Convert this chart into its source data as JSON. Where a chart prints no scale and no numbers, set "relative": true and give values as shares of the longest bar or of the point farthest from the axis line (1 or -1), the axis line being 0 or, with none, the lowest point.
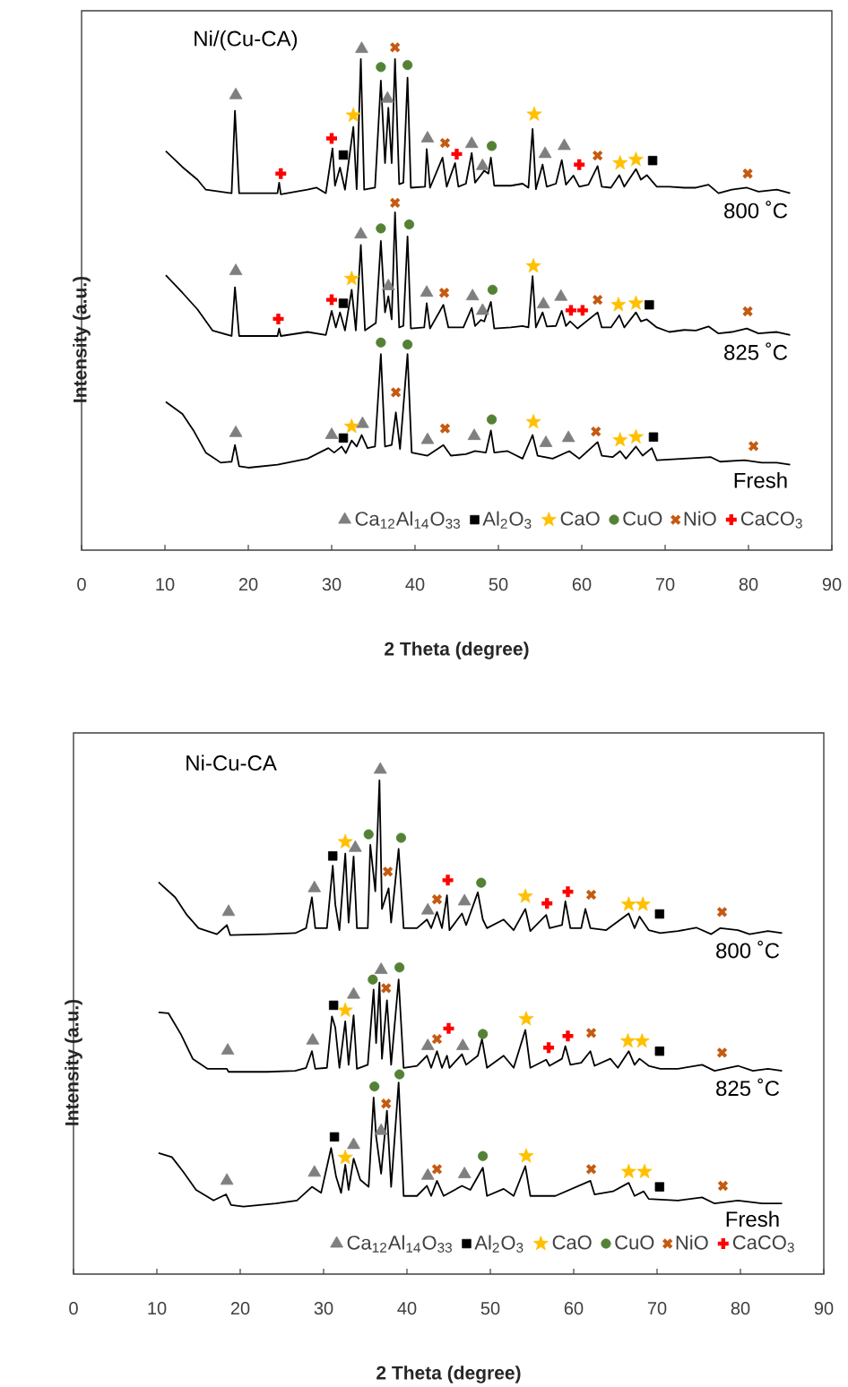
{
  "chart_data": [
    {
      "type": "line",
      "title": "Ni/(Cu-CA)",
      "xlabel": "2 Theta (degree)",
      "ylabel": "Intensity (a.u.)",
      "xlim": [
        0,
        90
      ],
      "xticks": [
        0,
        10,
        20,
        30,
        40,
        50,
        60,
        70,
        80,
        90
      ],
      "relative": true,
      "legend": "bottom right",
      "series": [
        {
          "name": "800 ˚C",
          "color": "#000000",
          "x": [
            10.1,
            12.1,
            13.9,
            14.9,
            18.0,
            18.4,
            18.9,
            23.5,
            23.7,
            23.9,
            27.1,
            28.2,
            29.3,
            30.1,
            30.4,
            31.0,
            31.6,
            32.6,
            33.0,
            33.5,
            33.9,
            35.2,
            35.9,
            36.4,
            36.8,
            37.2,
            37.6,
            38.1,
            38.6,
            39.1,
            39.5,
            41.2,
            41.4,
            41.8,
            43.3,
            43.8,
            44.8,
            45.2,
            46.1,
            46.8,
            47.2,
            47.9,
            48.3,
            48.8,
            49.1,
            49.5,
            51.5,
            52.9,
            53.6,
            54.1,
            54.5,
            55.3,
            55.8,
            56.9,
            57.6,
            58.1,
            59.0,
            59.7,
            60.8,
            61.9,
            62.4,
            63.5,
            64.5,
            65.1,
            66.5,
            67.1,
            67.8,
            69.0,
            70.5,
            72.3,
            73.7,
            75.2,
            76.4,
            78.0,
            79.8,
            81.2,
            83.4,
            85.0
          ],
          "values": [
            0.794,
            0.762,
            0.737,
            0.717,
            0.71,
            0.874,
            0.71,
            0.71,
            0.731,
            0.708,
            0.717,
            0.721,
            0.71,
            0.799,
            0.725,
            0.761,
            0.717,
            0.842,
            0.718,
            0.977,
            0.717,
            0.721,
            0.934,
            0.77,
            0.88,
            0.77,
            0.977,
            0.728,
            0.731,
            0.94,
            0.721,
            0.723,
            0.798,
            0.721,
            0.781,
            0.723,
            0.77,
            0.723,
            0.729,
            0.79,
            0.731,
            0.746,
            0.755,
            0.749,
            0.781,
            0.725,
            0.725,
            0.729,
            0.721,
            0.838,
            0.718,
            0.767,
            0.723,
            0.729,
            0.776,
            0.727,
            0.745,
            0.723,
            0.727,
            0.764,
            0.723,
            0.721,
            0.746,
            0.723,
            0.758,
            0.737,
            0.746,
            0.723,
            0.723,
            0.721,
            0.721,
            0.727,
            0.71,
            0.717,
            0.721,
            0.713,
            0.717,
            0.71
          ]
        },
        {
          "name": "825 ˚C",
          "color": "#000000",
          "x": [
            10.1,
            12.1,
            13.9,
            15.7,
            18.0,
            18.4,
            18.9,
            23.5,
            23.7,
            23.9,
            27.1,
            29.3,
            30.0,
            30.5,
            31.0,
            31.6,
            32.4,
            32.9,
            33.5,
            34.0,
            35.3,
            35.9,
            36.4,
            36.8,
            37.2,
            37.6,
            38.1,
            38.6,
            39.1,
            39.5,
            41.1,
            41.4,
            41.8,
            43.4,
            44.0,
            45.8,
            46.8,
            47.2,
            47.9,
            48.3,
            49.1,
            49.5,
            51.5,
            52.9,
            53.6,
            54.1,
            54.5,
            55.3,
            55.8,
            56.9,
            57.6,
            58.1,
            58.6,
            59.5,
            61.9,
            62.4,
            63.5,
            64.5,
            65.1,
            66.5,
            67.1,
            67.8,
            69.0,
            70.5,
            72.3,
            73.7,
            75.2,
            76.4,
            78.0,
            79.8,
            81.2,
            83.4,
            85.0
          ],
          "values": [
            0.547,
            0.512,
            0.479,
            0.437,
            0.426,
            0.523,
            0.426,
            0.426,
            0.441,
            0.426,
            0.434,
            0.428,
            0.476,
            0.443,
            0.473,
            0.437,
            0.518,
            0.437,
            0.607,
            0.437,
            0.452,
            0.615,
            0.473,
            0.505,
            0.459,
            0.672,
            0.443,
            0.446,
            0.624,
            0.441,
            0.443,
            0.491,
            0.441,
            0.488,
            0.443,
            0.443,
            0.482,
            0.446,
            0.458,
            0.455,
            0.494,
            0.441,
            0.443,
            0.446,
            0.443,
            0.545,
            0.443,
            0.473,
            0.445,
            0.446,
            0.476,
            0.446,
            0.455,
            0.441,
            0.473,
            0.443,
            0.443,
            0.467,
            0.443,
            0.473,
            0.455,
            0.459,
            0.443,
            0.434,
            0.438,
            0.437,
            0.445,
            0.431,
            0.434,
            0.441,
            0.431,
            0.434,
            0.428
          ]
        },
        {
          "name": "Fresh",
          "color": "#000000",
          "x": [
            10.1,
            12.1,
            13.5,
            14.9,
            16.7,
            18.0,
            18.4,
            18.9,
            20.0,
            23.5,
            27.1,
            29.6,
            30.3,
            31.2,
            31.7,
            32.4,
            33.0,
            33.6,
            34.3,
            35.2,
            35.9,
            36.4,
            37.2,
            37.7,
            38.2,
            39.1,
            39.6,
            41.5,
            43.4,
            44.3,
            46.1,
            47.2,
            48.5,
            49.1,
            49.5,
            51.1,
            52.9,
            54.1,
            54.7,
            56.5,
            58.5,
            59.7,
            61.9,
            62.4,
            63.7,
            64.6,
            65.3,
            66.5,
            67.3,
            68.4,
            69.0,
            72.3,
            75.5,
            76.6,
            79.5,
            81.6,
            83.4,
            85.0
          ],
          "values": [
            0.295,
            0.271,
            0.236,
            0.194,
            0.174,
            0.176,
            0.209,
            0.167,
            0.164,
            0.17,
            0.182,
            0.203,
            0.194,
            0.206,
            0.193,
            0.218,
            0.206,
            0.229,
            0.203,
            0.206,
            0.39,
            0.206,
            0.209,
            0.274,
            0.201,
            0.39,
            0.194,
            0.188,
            0.209,
            0.188,
            0.191,
            0.197,
            0.194,
            0.238,
            0.194,
            0.197,
            0.182,
            0.229,
            0.188,
            0.182,
            0.197,
            0.182,
            0.215,
            0.188,
            0.185,
            0.197,
            0.182,
            0.206,
            0.188,
            0.203,
            0.179,
            0.182,
            0.185,
            0.176,
            0.179,
            0.174,
            0.174,
            0.17
          ]
        },
        {
          "name": "Ca$_{12}$Al$_{14}$O$_{33}$",
          "type": "scatter",
          "marker": "triangle",
          "color": "#7f7f7f",
          "x": [
            18.5,
            33.6,
            36.7,
            41.5,
            46.8,
            48.1,
            55.6,
            57.9,
            18.5,
            33.5,
            36.8,
            41.4,
            46.9,
            48.1,
            55.4,
            57.5,
            18.5,
            30.0,
            33.7,
            41.5,
            47.1,
            55.7,
            58.4
          ],
          "values": [
            0.905,
            0.997,
            0.898,
            0.819,
            0.808,
            0.764,
            0.788,
            0.804,
            0.555,
            0.628,
            0.525,
            0.512,
            0.505,
            0.476,
            0.489,
            0.504,
            0.233,
            0.229,
            0.251,
            0.219,
            0.227,
            0.213,
            0.223
          ]
        },
        {
          "name": "Al$_{2}$O$_{3}$",
          "type": "scatter",
          "marker": "square",
          "color": "#000000",
          "x": [
            31.4,
            68.5,
            31.4,
            68.1,
            31.4,
            68.6
          ],
          "values": [
            0.786,
            0.775,
            0.491,
            0.488,
            0.223,
            0.225
          ]
        },
        {
          "name": "CaO",
          "type": "scatter",
          "marker": "star",
          "color": "#ffc000",
          "x": [
            32.6,
            54.3,
            64.6,
            66.5,
            32.4,
            54.2,
            64.4,
            66.5,
            32.4,
            54.2,
            64.6,
            66.5
          ],
          "values": [
            0.865,
            0.867,
            0.77,
            0.777,
            0.54,
            0.565,
            0.488,
            0.491,
            0.246,
            0.255,
            0.219,
            0.225
          ]
        },
        {
          "name": "CuO",
          "type": "scatter",
          "marker": "circle",
          "color": "#548235",
          "x": [
            35.9,
            39.1,
            49.2,
            35.9,
            39.3,
            49.3,
            35.9,
            39.1,
            49.2
          ],
          "values": [
            0.961,
            0.965,
            0.804,
            0.64,
            0.648,
            0.518,
            0.413,
            0.409,
            0.26
          ]
        },
        {
          "name": "NiO",
          "type": "scatter",
          "marker": "cross",
          "color": "#c55a11",
          "x": [
            37.6,
            43.6,
            61.9,
            79.9,
            37.6,
            43.5,
            61.9,
            79.9,
            37.7,
            43.6,
            61.7,
            80.6
          ],
          "values": [
            1.0,
            0.81,
            0.785,
            0.749,
            0.691,
            0.512,
            0.498,
            0.475,
            0.314,
            0.242,
            0.236,
            0.207
          ]
        },
        {
          "name": "CaCO$_{3}$",
          "type": "scatter",
          "marker": "plus",
          "color": "#ff0000",
          "x": [
            23.9,
            30.0,
            45.0,
            59.7,
            23.6,
            30.0,
            58.7,
            60.1
          ],
          "values": [
            0.749,
            0.819,
            0.788,
            0.767,
            0.46,
            0.498,
            0.477,
            0.477
          ]
        }
      ]
    },
    {
      "type": "line",
      "title": "Ni-Cu-CA",
      "xlabel": "2 Theta (degree)",
      "ylabel": "Intensity (a.u.)",
      "xlim": [
        0,
        90
      ],
      "xticks": [
        0,
        10,
        20,
        30,
        40,
        50,
        60,
        70,
        80,
        90
      ],
      "relative": true,
      "legend": "bottom right",
      "series": [
        {
          "name": "800 ˚C",
          "color": "#000000",
          "x": [
            10.2,
            12.2,
            13.6,
            15.0,
            17.2,
            18.4,
            18.8,
            23.2,
            26.6,
            27.9,
            28.6,
            29.0,
            30.4,
            31.1,
            31.4,
            31.9,
            32.6,
            33.0,
            33.6,
            34.0,
            35.3,
            35.6,
            36.2,
            36.7,
            37.0,
            37.8,
            38.1,
            39.0,
            39.6,
            41.2,
            42.4,
            42.9,
            43.6,
            44.2,
            44.8,
            45.1,
            46.6,
            47.1,
            48.5,
            49.1,
            49.6,
            51.6,
            52.8,
            54.2,
            54.8,
            56.7,
            57.1,
            58.6,
            59.0,
            59.6,
            60.9,
            61.4,
            62.0,
            63.9,
            66.6,
            67.3,
            67.9,
            69.0,
            70.4,
            72.5,
            74.7,
            76.5,
            77.6,
            79.7,
            81.1,
            83.3,
            85.0
          ],
          "values": [
            0.777,
            0.747,
            0.712,
            0.686,
            0.674,
            0.692,
            0.672,
            0.674,
            0.676,
            0.686,
            0.747,
            0.686,
            0.686,
            0.81,
            0.733,
            0.682,
            0.834,
            0.697,
            0.828,
            0.686,
            0.686,
            0.851,
            0.759,
            0.979,
            0.724,
            0.765,
            0.697,
            0.843,
            0.686,
            0.686,
            0.703,
            0.686,
            0.718,
            0.686,
            0.751,
            0.682,
            0.715,
            0.692,
            0.757,
            0.703,
            0.686,
            0.703,
            0.682,
            0.724,
            0.68,
            0.712,
            0.686,
            0.692,
            0.739,
            0.686,
            0.686,
            0.724,
            0.686,
            0.682,
            0.715,
            0.686,
            0.709,
            0.682,
            0.676,
            0.68,
            0.687,
            0.674,
            0.686,
            0.682,
            0.674,
            0.68,
            0.676
          ]
        },
        {
          "name": "825 ˚C",
          "color": "#000000",
          "x": [
            10.2,
            11.4,
            12.9,
            14.3,
            16.1,
            18.4,
            18.6,
            23.2,
            26.6,
            27.9,
            28.6,
            29.0,
            30.4,
            31.0,
            31.4,
            31.9,
            32.6,
            33.0,
            33.6,
            34.0,
            35.3,
            36.0,
            36.3,
            36.7,
            37.0,
            37.6,
            38.1,
            39.0,
            39.6,
            41.2,
            42.4,
            42.9,
            43.6,
            44.2,
            44.8,
            45.1,
            46.6,
            47.1,
            48.5,
            49.0,
            49.6,
            51.6,
            52.8,
            54.2,
            54.8,
            56.7,
            57.1,
            58.6,
            59.0,
            59.6,
            60.9,
            62.0,
            62.5,
            64.4,
            65.3,
            66.6,
            67.3,
            67.9,
            69.0,
            70.4,
            72.5,
            75.4,
            76.9,
            79.7,
            81.5,
            83.3,
            85.0
          ],
          "values": [
            0.519,
            0.517,
            0.475,
            0.427,
            0.407,
            0.407,
            0.401,
            0.401,
            0.403,
            0.409,
            0.442,
            0.407,
            0.409,
            0.511,
            0.489,
            0.409,
            0.501,
            0.415,
            0.513,
            0.407,
            0.415,
            0.564,
            0.458,
            0.578,
            0.427,
            0.543,
            0.415,
            0.584,
            0.409,
            0.413,
            0.433,
            0.409,
            0.442,
            0.409,
            0.433,
            0.409,
            0.436,
            0.415,
            0.433,
            0.466,
            0.409,
            0.433,
            0.409,
            0.484,
            0.409,
            0.425,
            0.413,
            0.427,
            0.452,
            0.415,
            0.419,
            0.442,
            0.413,
            0.427,
            0.409,
            0.442,
            0.415,
            0.427,
            0.413,
            0.407,
            0.407,
            0.415,
            0.403,
            0.413,
            0.403,
            0.407,
            0.403
          ]
        },
        {
          "name": "Fresh",
          "color": "#000000",
          "x": [
            10.2,
            11.8,
            13.2,
            14.7,
            16.8,
            18.3,
            18.9,
            20.4,
            24.3,
            26.8,
            28.6,
            29.7,
            30.9,
            31.5,
            32.1,
            32.6,
            33.0,
            33.6,
            34.4,
            35.4,
            36.0,
            36.3,
            36.9,
            37.6,
            38.1,
            39.0,
            39.6,
            41.2,
            42.4,
            42.9,
            43.6,
            44.4,
            46.6,
            47.6,
            49.1,
            49.6,
            51.6,
            52.8,
            54.2,
            54.8,
            57.8,
            62.0,
            62.5,
            64.7,
            66.6,
            67.3,
            68.4,
            69.0,
            72.5,
            75.4,
            76.9,
            79.7,
            82.6,
            85.0
          ],
          "values": [
            0.24,
            0.232,
            0.202,
            0.167,
            0.146,
            0.158,
            0.137,
            0.134,
            0.14,
            0.146,
            0.173,
            0.161,
            0.25,
            0.193,
            0.161,
            0.217,
            0.167,
            0.229,
            0.187,
            0.173,
            0.35,
            0.273,
            0.199,
            0.324,
            0.173,
            0.38,
            0.155,
            0.155,
            0.175,
            0.155,
            0.185,
            0.155,
            0.175,
            0.167,
            0.211,
            0.155,
            0.169,
            0.155,
            0.214,
            0.155,
            0.155,
            0.185,
            0.158,
            0.164,
            0.181,
            0.155,
            0.164,
            0.149,
            0.146,
            0.152,
            0.14,
            0.146,
            0.14,
            0.14
          ]
        },
        {
          "name": "Ca$_{12}$Al$_{14}$O$_{33}$",
          "type": "scatter",
          "marker": "triangle",
          "color": "#7f7f7f",
          "x": [
            18.6,
            28.9,
            33.8,
            36.8,
            42.5,
            46.9,
            18.5,
            28.7,
            33.6,
            36.9,
            42.5,
            46.7,
            18.4,
            28.9,
            33.6,
            36.9,
            42.5,
            46.9
          ],
          "values": [
            0.718,
            0.765,
            0.845,
            1.0,
            0.721,
            0.739,
            0.443,
            0.463,
            0.554,
            0.603,
            0.452,
            0.452,
            0.185,
            0.201,
            0.256,
            0.284,
            0.195,
            0.198
          ]
        },
        {
          "name": "Al$_{2}$O$_{3}$",
          "type": "scatter",
          "marker": "square",
          "color": "#000000",
          "x": [
            31.1,
            70.3,
            31.2,
            70.3,
            31.3,
            70.3
          ],
          "values": [
            0.829,
            0.714,
            0.533,
            0.442,
            0.272,
            0.173
          ]
        },
        {
          "name": "CaO",
          "type": "scatter",
          "marker": "star",
          "color": "#ffc000",
          "x": [
            32.6,
            54.2,
            66.6,
            68.3,
            32.6,
            54.3,
            66.5,
            68.2,
            32.6,
            54.3,
            66.6,
            68.5
          ],
          "values": [
            0.857,
            0.749,
            0.733,
            0.733,
            0.523,
            0.506,
            0.462,
            0.462,
            0.231,
            0.234,
            0.203,
            0.203
          ]
        },
        {
          "name": "CuO",
          "type": "scatter",
          "marker": "circle",
          "color": "#548235",
          "x": [
            35.4,
            39.3,
            48.9,
            35.9,
            39.1,
            49.1,
            36.1,
            39.1,
            49.1
          ],
          "values": [
            0.872,
            0.865,
            0.776,
            0.584,
            0.608,
            0.476,
            0.372,
            0.396,
            0.234
          ]
        },
        {
          "name": "NiO",
          "type": "scatter",
          "marker": "cross",
          "color": "#c55a11",
          "x": [
            37.7,
            43.6,
            62.1,
            77.8,
            37.5,
            43.6,
            62.1,
            77.8,
            37.5,
            43.6,
            62.1,
            77.9
          ],
          "values": [
            0.798,
            0.743,
            0.752,
            0.718,
            0.567,
            0.466,
            0.478,
            0.439,
            0.338,
            0.208,
            0.208,
            0.175
          ]
        },
        {
          "name": "CaCO$_{3}$",
          "type": "scatter",
          "marker": "plus",
          "color": "#ff0000",
          "x": [
            44.9,
            56.8,
            59.3,
            45.0,
            57.0,
            59.3
          ],
          "values": [
            0.781,
            0.735,
            0.758,
            0.487,
            0.449,
            0.472
          ]
        }
      ]
    }
  ]
}
